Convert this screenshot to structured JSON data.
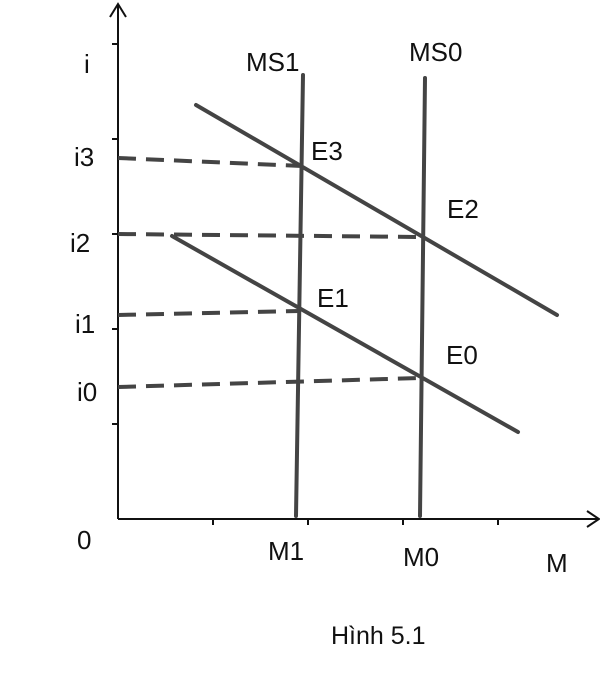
{
  "axes": {
    "y_label": "i",
    "x_label": "M",
    "origin_label": "0"
  },
  "y_ticks": [
    "i3",
    "i2",
    "i1",
    "i0"
  ],
  "x_ticks": [
    "M1",
    "M0"
  ],
  "curves": {
    "ms1": "MS1",
    "ms0": "MS0"
  },
  "points": [
    "E3",
    "E2",
    "E1",
    "E0"
  ],
  "caption": "Hình 5.1",
  "colors": {
    "line": "#444444",
    "text": "#111111",
    "axis": "#111111"
  }
}
